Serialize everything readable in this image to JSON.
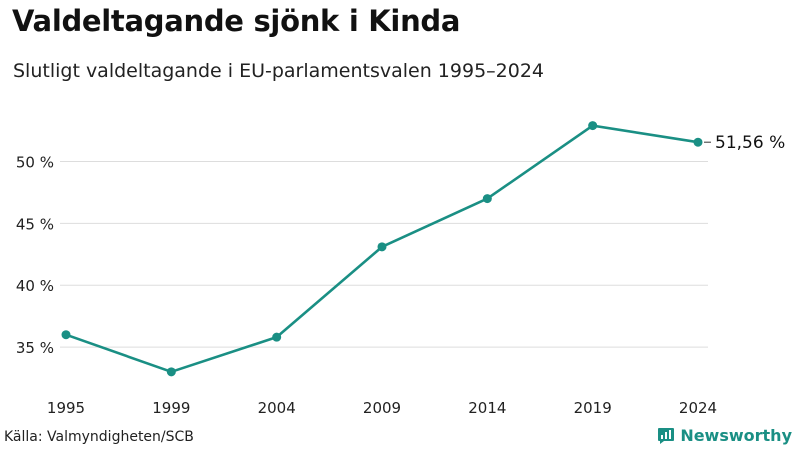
{
  "chart_data": {
    "type": "line",
    "title": "Valdeltagande sjönk i Kinda",
    "subtitle": "Slutligt valdeltagande i EU-parlamentsvalen 1995–2024",
    "categories": [
      "1995",
      "1999",
      "2004",
      "2009",
      "2014",
      "2019",
      "2024"
    ],
    "series": [
      {
        "name": "Valdeltagande",
        "values": [
          36.0,
          33.0,
          35.8,
          43.1,
          47.0,
          52.9,
          51.56
        ]
      }
    ],
    "yticks": [
      35,
      40,
      45,
      50
    ],
    "ytick_labels": [
      "35 %",
      "40 %",
      "45 %",
      "50 %"
    ],
    "ylim": [
      32.5,
      54
    ],
    "end_label": "51,56 %",
    "grid": true,
    "line_color": "#1a8f84",
    "grid_color": "#dddddd"
  },
  "footer": {
    "source": "Källa: Valmyndigheten/SCB",
    "brand": "Newsworthy",
    "brand_icon": "newsworthy-logo-icon",
    "brand_color": "#1a8f84"
  }
}
